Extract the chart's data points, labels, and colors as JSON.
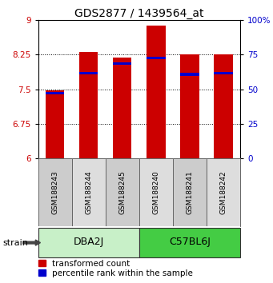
{
  "title": "GDS2877 / 1439564_at",
  "samples": [
    "GSM188243",
    "GSM188244",
    "GSM188245",
    "GSM188240",
    "GSM188241",
    "GSM188242"
  ],
  "groups": [
    {
      "label": "DBA2J",
      "indices": [
        0,
        1,
        2
      ],
      "color": "#c8f0c8"
    },
    {
      "label": "C57BL6J",
      "indices": [
        3,
        4,
        5
      ],
      "color": "#44cc44"
    }
  ],
  "red_values": [
    7.48,
    8.3,
    8.18,
    8.88,
    8.25,
    8.25
  ],
  "blue_values": [
    7.42,
    7.85,
    8.05,
    8.17,
    7.82,
    7.85
  ],
  "ymin": 6.0,
  "ymax": 9.0,
  "yticks": [
    6,
    6.75,
    7.5,
    8.25,
    9
  ],
  "ytick_labels": [
    "6",
    "6.75",
    "7.5",
    "8.25",
    "9"
  ],
  "right_yticks": [
    0,
    25,
    50,
    75,
    100
  ],
  "right_ytick_labels": [
    "0",
    "25",
    "50",
    "75",
    "100%"
  ],
  "bar_width": 0.55,
  "red_color": "#cc0000",
  "blue_color": "#0000cc",
  "bar_bottom": 6.0,
  "title_fontsize": 10,
  "tick_fontsize": 7.5,
  "sample_fontsize": 6.5,
  "group_label_fontsize": 9,
  "legend_fontsize": 7.5,
  "strain_fontsize": 8
}
